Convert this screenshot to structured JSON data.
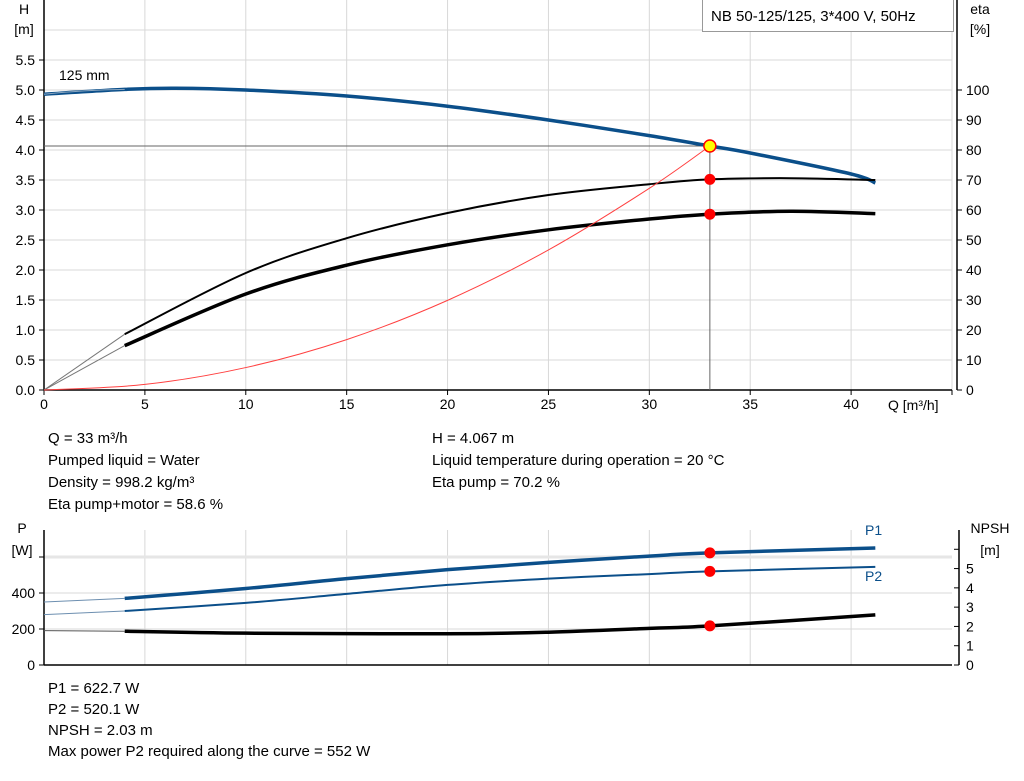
{
  "legend": "NB 50-125/125, 3*400 V, 50Hz",
  "chart_data": [
    {
      "type": "line",
      "title": "",
      "xlabel": "Q [m³/h]",
      "ylabel_left": [
        "H",
        "[m]"
      ],
      "ylabel_right": [
        "eta",
        "[%]"
      ],
      "xlim": [
        0,
        45
      ],
      "ylim_left": [
        0,
        6.5
      ],
      "ylim_right": [
        0,
        130
      ],
      "x_ticks": [
        "0",
        "5",
        "10",
        "15",
        "20",
        "25",
        "30",
        "35",
        "40"
      ],
      "y_ticks_left": [
        "0.0",
        "0.5",
        "1.0",
        "1.5",
        "2.0",
        "2.5",
        "3.0",
        "3.5",
        "4.0",
        "4.5",
        "5.0",
        "5.5"
      ],
      "y_ticks_right": [
        "0",
        "10",
        "20",
        "30",
        "40",
        "50",
        "60",
        "70",
        "80",
        "90",
        "100"
      ],
      "grid": true,
      "curve_label": "125 mm",
      "series": [
        {
          "key": "head",
          "axis": "left",
          "color": "#0b4f8a",
          "x": [
            0,
            4,
            6.5,
            10,
            15,
            20,
            25,
            30,
            33,
            35,
            40,
            41.2
          ],
          "y": [
            4.93,
            5.01,
            5.03,
            5.0,
            4.9,
            4.73,
            4.5,
            4.24,
            4.067,
            3.95,
            3.6,
            3.45
          ]
        },
        {
          "key": "eta_pump",
          "axis": "right",
          "color": "#000000",
          "x": [
            4,
            10,
            15,
            20,
            25,
            30,
            33,
            37,
            41.2
          ],
          "y": [
            18.6,
            39,
            50.6,
            59,
            65,
            68.6,
            70.2,
            70.6,
            70
          ]
        },
        {
          "key": "eta_pump_motor",
          "axis": "right",
          "color": "#000000",
          "x": [
            4,
            10,
            15,
            20,
            25,
            30,
            33,
            37,
            41.2
          ],
          "y": [
            14.8,
            32,
            41.6,
            48.4,
            53.4,
            57,
            58.6,
            59.6,
            58.8
          ]
        },
        {
          "key": "system_curve",
          "axis": "left",
          "color": "#ff4040",
          "x": [
            0,
            5,
            10,
            15,
            20,
            25,
            30,
            33
          ],
          "y": [
            0,
            0.093,
            0.374,
            0.84,
            1.494,
            2.334,
            3.361,
            4.067
          ]
        }
      ],
      "operating_point": {
        "x": 33,
        "head": 4.067,
        "eta_pump": 70.2,
        "eta_pump_motor": 58.6
      }
    },
    {
      "type": "line",
      "title": "",
      "ylabel_left": [
        "P",
        "[W]"
      ],
      "ylabel_right": [
        "NPSH",
        "[m]"
      ],
      "xlim": [
        0,
        45
      ],
      "ylim_left": [
        0,
        750
      ],
      "ylim_right": [
        0,
        7
      ],
      "y_ticks_left": [
        "0",
        "200",
        "400"
      ],
      "y_ticks_right": [
        "0",
        "1",
        "2",
        "3",
        "4",
        "5"
      ],
      "grid": true,
      "series": [
        {
          "key": "P1",
          "name": "P1",
          "axis": "left",
          "color": "#0b4f8a",
          "x": [
            0,
            4,
            10,
            15,
            20,
            25,
            30,
            33,
            41.2
          ],
          "y": [
            350,
            370,
            425,
            480,
            530,
            570,
            605,
            622.7,
            650
          ]
        },
        {
          "key": "P2",
          "name": "P2",
          "axis": "left",
          "color": "#0b4f8a",
          "x": [
            0,
            4,
            10,
            15,
            20,
            25,
            30,
            33,
            41.2
          ],
          "y": [
            280,
            300,
            345,
            395,
            445,
            480,
            505,
            520.1,
            545
          ]
        },
        {
          "key": "NPSH",
          "axis": "right",
          "color": "#000000",
          "x": [
            0,
            4,
            10,
            20,
            25,
            30,
            33,
            41.2
          ],
          "y": [
            1.78,
            1.75,
            1.65,
            1.62,
            1.7,
            1.9,
            2.03,
            2.6
          ]
        }
      ],
      "operating_point": {
        "x": 33,
        "P1": 622.7,
        "P2": 520.1,
        "NPSH": 2.03
      }
    }
  ],
  "info_top": {
    "col1": [
      "Q = 33 m³/h",
      "Pumped liquid = Water",
      "Density = 998.2 kg/m³",
      "Eta pump+motor = 58.6 %"
    ],
    "col2": [
      "H = 4.067 m",
      "Liquid temperature during operation = 20 °C",
      "Eta pump = 70.2 %"
    ]
  },
  "info_bottom": [
    "P1 = 622.7 W",
    "P2 = 520.1 W",
    "NPSH = 2.03 m",
    "Max power P2 required along the curve = 552 W"
  ]
}
